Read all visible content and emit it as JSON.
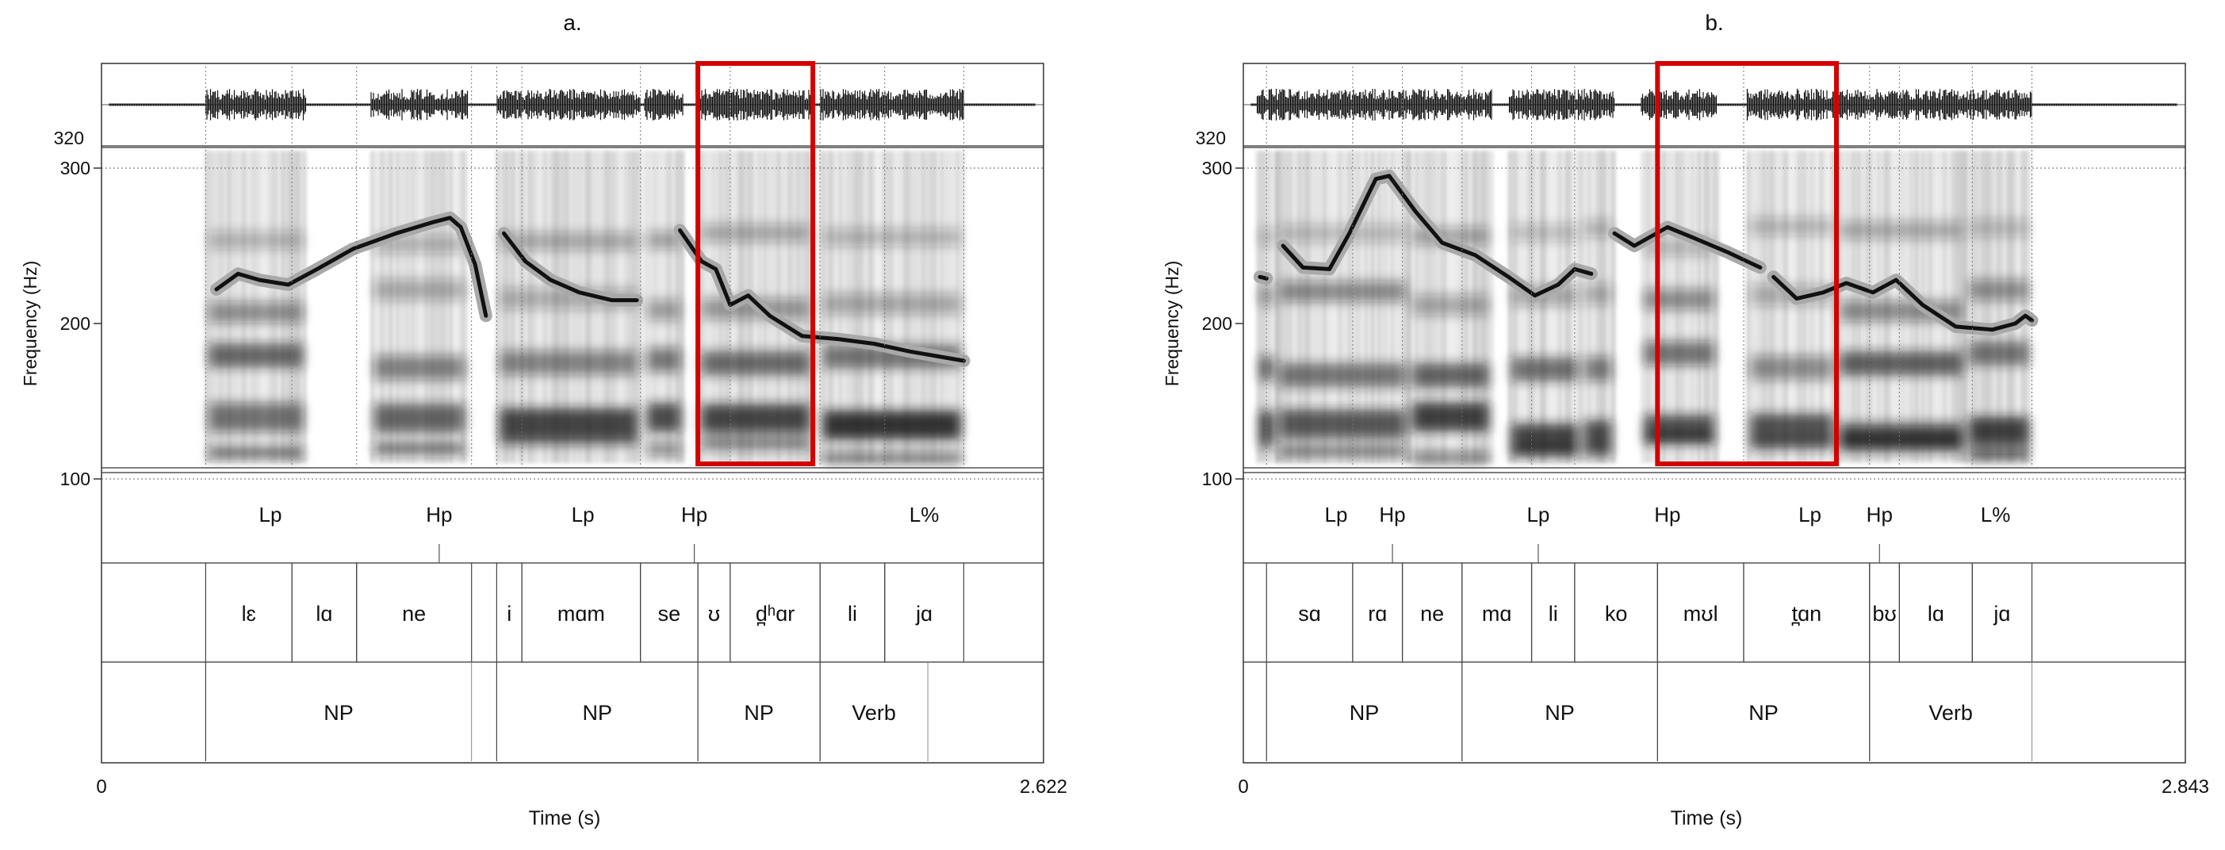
{
  "y_axis": {
    "label": "Frequency (Hz)",
    "ticks": [
      {
        "label": "100",
        "value": 100
      },
      {
        "label": "200",
        "value": 200
      },
      {
        "label": "300",
        "value": 300
      }
    ],
    "pitch_ceiling_label": "320"
  },
  "x_axis": {
    "label": "Time (s)"
  },
  "panels": [
    {
      "id": "a",
      "title": "a.",
      "time_start": "0",
      "time_end": "2.622",
      "duration": 2.622,
      "highlight": {
        "t0": 1.66,
        "t1": 1.98
      },
      "voiced_regions": [
        [
          0.29,
          0.57
        ],
        [
          0.75,
          1.02
        ],
        [
          1.1,
          1.5
        ],
        [
          1.51,
          1.62
        ],
        [
          1.66,
          1.98
        ],
        [
          2.0,
          2.4
        ]
      ],
      "pitch_segments": [
        [
          [
            0.32,
            222
          ],
          [
            0.38,
            232
          ],
          [
            0.44,
            228
          ],
          [
            0.52,
            225
          ],
          [
            0.6,
            235
          ],
          [
            0.7,
            248
          ],
          [
            0.82,
            258
          ],
          [
            0.92,
            265
          ],
          [
            0.97,
            268
          ],
          [
            1.0,
            262
          ],
          [
            1.04,
            238
          ],
          [
            1.07,
            205
          ]
        ],
        [
          [
            1.12,
            258
          ],
          [
            1.18,
            240
          ],
          [
            1.25,
            228
          ],
          [
            1.33,
            220
          ],
          [
            1.42,
            215
          ],
          [
            1.49,
            215
          ]
        ],
        [
          [
            1.61,
            260
          ],
          [
            1.67,
            240
          ],
          [
            1.71,
            235
          ],
          [
            1.75,
            212
          ],
          [
            1.8,
            218
          ],
          [
            1.86,
            205
          ],
          [
            1.95,
            192
          ],
          [
            2.05,
            190
          ],
          [
            2.15,
            187
          ],
          [
            2.25,
            182
          ],
          [
            2.35,
            178
          ],
          [
            2.4,
            176
          ]
        ]
      ],
      "tones": [
        {
          "label": "Lp",
          "t": 0.47
        },
        {
          "label": "Hp",
          "t": 0.94
        },
        {
          "label": "Lp",
          "t": 1.34
        },
        {
          "label": "Hp",
          "t": 1.65
        },
        {
          "label": "L%",
          "t": 2.29
        }
      ],
      "tone_points": [
        0.94,
        1.65
      ],
      "syllables": [
        {
          "label": "lɛ",
          "t0": 0.29,
          "t1": 0.53
        },
        {
          "label": "lɑ",
          "t0": 0.53,
          "t1": 0.71
        },
        {
          "label": "ne",
          "t0": 0.71,
          "t1": 1.03
        },
        {
          "label": "i",
          "t0": 1.1,
          "t1": 1.17
        },
        {
          "label": "mɑm",
          "t0": 1.17,
          "t1": 1.5
        },
        {
          "label": "se",
          "t0": 1.5,
          "t1": 1.66
        },
        {
          "label": "ʊ",
          "t0": 1.66,
          "t1": 1.75
        },
        {
          "label": "d̪ʰɑr",
          "t0": 1.75,
          "t1": 2.0
        },
        {
          "label": "li",
          "t0": 2.0,
          "t1": 2.18
        },
        {
          "label": "jɑ",
          "t0": 2.18,
          "t1": 2.4
        }
      ],
      "phrases": [
        {
          "label": "NP",
          "t0": 0.29,
          "t1": 1.03
        },
        {
          "label": "NP",
          "t0": 1.1,
          "t1": 1.66
        },
        {
          "label": "NP",
          "t0": 1.66,
          "t1": 2.0
        },
        {
          "label": "Verb",
          "t0": 2.0,
          "t1": 2.3
        }
      ]
    },
    {
      "id": "b",
      "title": "b.",
      "time_start": "0",
      "time_end": "2.843",
      "duration": 2.843,
      "highlight": {
        "t0": 1.25,
        "t1": 1.79
      },
      "voiced_regions": [
        [
          0.04,
          0.1
        ],
        [
          0.1,
          0.5
        ],
        [
          0.5,
          0.75
        ],
        [
          0.8,
          1.02
        ],
        [
          1.02,
          1.12
        ],
        [
          1.2,
          1.43
        ],
        [
          1.52,
          1.79
        ],
        [
          1.79,
          2.18
        ],
        [
          2.18,
          2.38
        ]
      ],
      "pitch_segments": [
        [
          [
            0.05,
            230
          ],
          [
            0.07,
            229
          ]
        ],
        [
          [
            0.12,
            250
          ],
          [
            0.18,
            236
          ],
          [
            0.26,
            235
          ],
          [
            0.32,
            258
          ],
          [
            0.4,
            293
          ],
          [
            0.44,
            295
          ],
          [
            0.52,
            272
          ],
          [
            0.6,
            252
          ],
          [
            0.7,
            244
          ],
          [
            0.8,
            230
          ],
          [
            0.88,
            218
          ],
          [
            0.95,
            225
          ],
          [
            1.0,
            235
          ],
          [
            1.05,
            232
          ]
        ],
        [
          [
            1.12,
            258
          ],
          [
            1.18,
            250
          ],
          [
            1.28,
            262
          ],
          [
            1.36,
            255
          ],
          [
            1.46,
            246
          ],
          [
            1.52,
            240
          ],
          [
            1.56,
            236
          ]
        ],
        [
          [
            1.6,
            230
          ],
          [
            1.67,
            216
          ],
          [
            1.75,
            220
          ],
          [
            1.82,
            226
          ],
          [
            1.9,
            220
          ],
          [
            1.97,
            228
          ],
          [
            2.05,
            212
          ],
          [
            2.15,
            198
          ],
          [
            2.26,
            196
          ],
          [
            2.33,
            200
          ],
          [
            2.36,
            205
          ],
          [
            2.38,
            202
          ]
        ]
      ],
      "tones": [
        {
          "label": "Lp",
          "t": 0.28
        },
        {
          "label": "Hp",
          "t": 0.45
        },
        {
          "label": "Lp",
          "t": 0.89
        },
        {
          "label": "Hp",
          "t": 1.28
        },
        {
          "label": "Lp",
          "t": 1.71
        },
        {
          "label": "Hp",
          "t": 1.92
        },
        {
          "label": "L%",
          "t": 2.27
        }
      ],
      "tone_points": [
        0.45,
        0.89,
        1.92
      ],
      "syllables": [
        {
          "label": "sɑ",
          "t0": 0.07,
          "t1": 0.33
        },
        {
          "label": "rɑ",
          "t0": 0.33,
          "t1": 0.48
        },
        {
          "label": "ne",
          "t0": 0.48,
          "t1": 0.66
        },
        {
          "label": "mɑ",
          "t0": 0.66,
          "t1": 0.87
        },
        {
          "label": "li",
          "t0": 0.87,
          "t1": 1.0
        },
        {
          "label": "ko",
          "t0": 1.0,
          "t1": 1.25
        },
        {
          "label": "mʊl",
          "t0": 1.25,
          "t1": 1.51
        },
        {
          "label": "t̪ɑn",
          "t0": 1.51,
          "t1": 1.89
        },
        {
          "label": "bʊ",
          "t0": 1.89,
          "t1": 1.98
        },
        {
          "label": "lɑ",
          "t0": 1.98,
          "t1": 2.2
        },
        {
          "label": "jɑ",
          "t0": 2.2,
          "t1": 2.38
        }
      ],
      "phrases": [
        {
          "label": "NP",
          "t0": 0.07,
          "t1": 0.66
        },
        {
          "label": "NP",
          "t0": 0.66,
          "t1": 1.25
        },
        {
          "label": "NP",
          "t0": 1.25,
          "t1": 1.89
        },
        {
          "label": "Verb",
          "t0": 1.89,
          "t1": 2.38
        }
      ]
    }
  ],
  "colors": {
    "highlight_box": "#d40000",
    "pitch_line": "#111111",
    "pitch_halo": "#a9a9a9",
    "spectrogram": "#444444",
    "axis": "#333333"
  }
}
